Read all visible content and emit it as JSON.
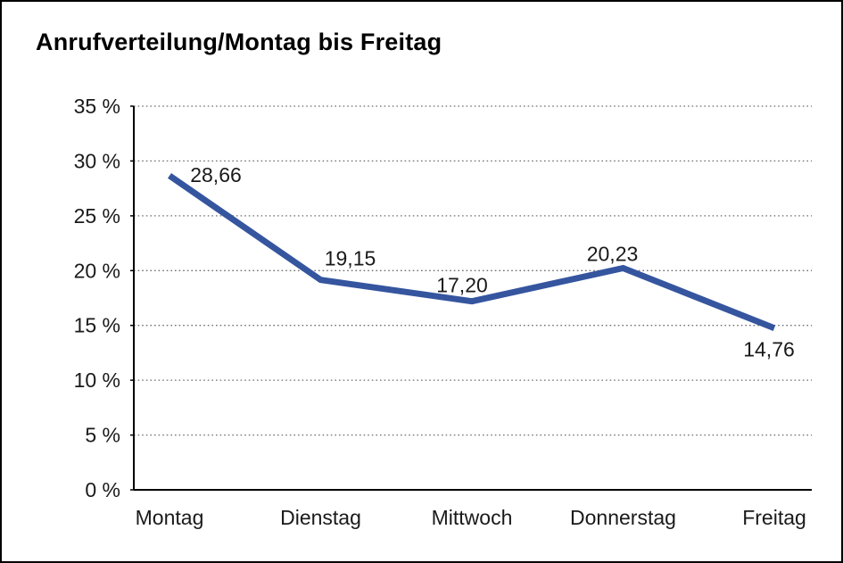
{
  "header": {
    "title": "Anrufverteilung/Montag bis Freitag"
  },
  "colors": {
    "line": "#35559F",
    "grid": "#6e6e6e",
    "axis": "#000000",
    "text": "#1a1a1a",
    "background": "#ffffff",
    "border": "#000000"
  },
  "chart_data": {
    "type": "line",
    "title": "Anrufverteilung/Montag bis Freitag",
    "categories": [
      "Montag",
      "Dienstag",
      "Mittwoch",
      "Donnerstag",
      "Freitag"
    ],
    "values": [
      28.66,
      19.15,
      17.2,
      20.23,
      14.76
    ],
    "data_labels": [
      "28,66",
      "19,15",
      "17,20",
      "20,23",
      "14,76"
    ],
    "label_positions": [
      "right",
      "above",
      "above",
      "above",
      "below"
    ],
    "y_ticks": [
      {
        "value": 0,
        "label": "0 %"
      },
      {
        "value": 5,
        "label": "5 %"
      },
      {
        "value": 10,
        "label": "10 %"
      },
      {
        "value": 15,
        "label": "15 %"
      },
      {
        "value": 20,
        "label": "20 %"
      },
      {
        "value": 25,
        "label": "25 %"
      },
      {
        "value": 30,
        "label": "30 %"
      },
      {
        "value": 35,
        "label": "35 %"
      }
    ],
    "ylim": [
      0,
      35
    ],
    "xlabel": "",
    "ylabel": "",
    "grid": "horizontal-dotted",
    "legend": "none"
  }
}
